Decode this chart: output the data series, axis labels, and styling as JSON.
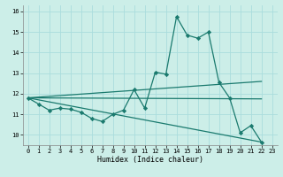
{
  "xlabel": "Humidex (Indice chaleur)",
  "bg_color": "#cceee8",
  "grid_color": "#aadddd",
  "line_color": "#1a7a6e",
  "xlim": [
    -0.5,
    23.5
  ],
  "ylim": [
    9.5,
    16.3
  ],
  "xticks": [
    0,
    1,
    2,
    3,
    4,
    5,
    6,
    7,
    8,
    9,
    10,
    11,
    12,
    13,
    14,
    15,
    16,
    17,
    18,
    19,
    20,
    21,
    22,
    23
  ],
  "yticks": [
    10,
    11,
    12,
    13,
    14,
    15,
    16
  ],
  "series_main": {
    "x": [
      0,
      1,
      2,
      3,
      4,
      5,
      6,
      7,
      8,
      9,
      10,
      11,
      12,
      13,
      14,
      15,
      16,
      17,
      18,
      19,
      20,
      21,
      22
    ],
    "y": [
      11.8,
      11.5,
      11.2,
      11.3,
      11.25,
      11.1,
      10.8,
      10.65,
      11.0,
      11.2,
      12.2,
      11.3,
      13.05,
      12.95,
      15.75,
      14.85,
      14.7,
      15.0,
      12.55,
      11.8,
      10.1,
      10.45,
      9.65
    ]
  },
  "trend_lines": [
    {
      "x": [
        0,
        22
      ],
      "y": [
        11.8,
        11.75
      ]
    },
    {
      "x": [
        0,
        22
      ],
      "y": [
        11.8,
        12.6
      ]
    },
    {
      "x": [
        0,
        22
      ],
      "y": [
        11.8,
        9.65
      ]
    }
  ],
  "marker": "D",
  "markersize": 2.2,
  "linewidth": 0.9,
  "tick_fontsize": 5.0,
  "xlabel_fontsize": 6.0
}
